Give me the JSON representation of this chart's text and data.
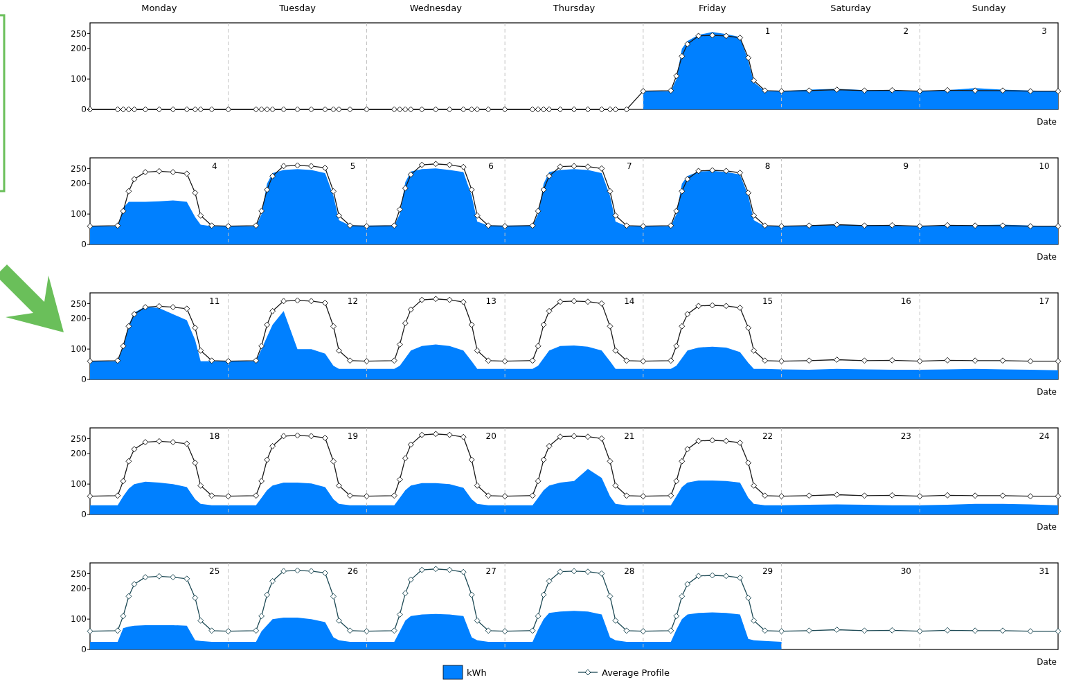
{
  "chart_data": [
    {
      "type": "area",
      "xlabel": "Date",
      "xlim": [
        -3.9,
        3.1
      ],
      "ylim": [
        0,
        285
      ],
      "yticks": [
        0,
        100,
        200,
        250
      ],
      "annotations": [
        "Monday",
        "Tuesday",
        "Wednesday",
        "Thursday",
        "Friday",
        "Saturday",
        "Sunday"
      ],
      "xticks": [
        1,
        2,
        3
      ],
      "x": [
        -3.9,
        -3.7,
        -3.66,
        -3.62,
        -3.58,
        -3.5,
        -3.4,
        -3.3,
        -3.2,
        -3.14,
        -3.1,
        -3.02,
        -2.9,
        -2.7,
        -2.66,
        -2.62,
        -2.58,
        -2.5,
        -2.4,
        -2.3,
        -2.2,
        -2.14,
        -2.1,
        -2.02,
        -1.9,
        -1.7,
        -1.66,
        -1.62,
        -1.58,
        -1.5,
        -1.4,
        -1.3,
        -1.2,
        -1.14,
        -1.1,
        -1.02,
        -0.9,
        -0.7,
        -0.66,
        -0.62,
        -0.58,
        -0.5,
        -0.4,
        -0.3,
        -0.2,
        -0.14,
        -0.1,
        -0.02,
        0.1,
        0.3,
        0.34,
        0.38,
        0.42,
        0.5,
        0.6,
        0.7,
        0.8,
        0.86,
        0.9,
        0.98,
        1.1,
        1.3,
        1.5,
        1.7,
        1.9,
        2.1,
        2.3,
        2.5,
        2.7,
        2.9,
        3.1
      ],
      "ref_lines": [
        {
          "axis": "x",
          "value": -2.9,
          "line_style": "dashed",
          "color": "#c0c0c0"
        },
        {
          "axis": "x",
          "value": -1.9,
          "line_style": "dashed",
          "color": "#c0c0c0"
        },
        {
          "axis": "x",
          "value": -0.9,
          "line_style": "dashed",
          "color": "#c0c0c0"
        },
        {
          "axis": "x",
          "value": 0.1,
          "line_style": "dashed",
          "color": "#c0c0c0"
        },
        {
          "axis": "x",
          "value": 1.1,
          "line_style": "dashed",
          "color": "#c0c0c0"
        },
        {
          "axis": "x",
          "value": 2.1,
          "line_style": "dashed",
          "color": "#c0c0c0"
        }
      ],
      "series": [
        {
          "color": "#0080ff",
          "values": [
            null,
            null,
            null,
            null,
            null,
            null,
            null,
            null,
            null,
            null,
            null,
            null,
            null,
            null,
            null,
            null,
            null,
            null,
            null,
            null,
            null,
            null,
            null,
            null,
            null,
            null,
            null,
            null,
            null,
            null,
            null,
            null,
            null,
            null,
            null,
            null,
            null,
            null,
            null,
            null,
            null,
            null,
            null,
            null,
            null,
            null,
            null,
            null,
            60,
            60,
            100,
            200,
            225,
            245,
            255,
            248,
            238,
            160,
            90,
            60,
            60,
            65,
            68,
            63,
            62,
            60,
            63,
            70,
            65,
            62,
            60
          ]
        },
        {
          "type": "line",
          "color": "#1a1a1a",
          "marker": "diamond",
          "values": [
            0,
            0,
            0,
            0,
            0,
            0,
            0,
            0,
            0,
            0,
            0,
            0,
            0,
            0,
            0,
            0,
            0,
            0,
            0,
            0,
            0,
            0,
            0,
            0,
            0,
            0,
            0,
            0,
            0,
            0,
            0,
            0,
            0,
            0,
            0,
            0,
            0,
            0,
            0,
            0,
            0,
            0,
            0,
            0,
            0,
            0,
            0,
            0,
            60,
            62,
            110,
            175,
            215,
            242,
            244,
            242,
            236,
            170,
            95,
            62,
            60,
            62,
            65,
            62,
            63,
            60,
            63,
            62,
            62,
            60,
            60
          ]
        }
      ]
    },
    {
      "type": "area",
      "xlabel": "Date",
      "xlim": [
        3.1,
        10.1
      ],
      "ylim": [
        0,
        285
      ],
      "yticks": [
        0,
        100,
        200,
        250
      ],
      "xticks": [
        4,
        5,
        6,
        7,
        8,
        9,
        10
      ],
      "x": [
        3.1,
        3.3,
        3.34,
        3.38,
        3.42,
        3.5,
        3.6,
        3.7,
        3.8,
        3.86,
        3.9,
        3.98,
        4.1,
        4.3,
        4.34,
        4.38,
        4.42,
        4.5,
        4.6,
        4.7,
        4.8,
        4.86,
        4.9,
        4.98,
        5.1,
        5.3,
        5.34,
        5.38,
        5.42,
        5.5,
        5.6,
        5.7,
        5.8,
        5.86,
        5.9,
        5.98,
        6.1,
        6.3,
        6.34,
        6.38,
        6.42,
        6.5,
        6.6,
        6.7,
        6.8,
        6.86,
        6.9,
        6.98,
        7.1,
        7.3,
        7.34,
        7.38,
        7.42,
        7.5,
        7.6,
        7.7,
        7.8,
        7.86,
        7.9,
        7.98,
        8.1,
        8.3,
        8.5,
        8.7,
        8.9,
        9.1,
        9.3,
        9.5,
        9.7,
        9.9,
        10.1
      ],
      "ref_lines": [
        {
          "axis": "x",
          "value": 4.1,
          "line_style": "dashed",
          "color": "#c0c0c0"
        },
        {
          "axis": "x",
          "value": 5.1,
          "line_style": "dashed",
          "color": "#c0c0c0"
        },
        {
          "axis": "x",
          "value": 6.1,
          "line_style": "dashed",
          "color": "#c0c0c0"
        },
        {
          "axis": "x",
          "value": 7.1,
          "line_style": "dashed",
          "color": "#c0c0c0"
        },
        {
          "axis": "x",
          "value": 8.1,
          "line_style": "dashed",
          "color": "#c0c0c0"
        },
        {
          "axis": "x",
          "value": 9.1,
          "line_style": "dashed",
          "color": "#c0c0c0"
        }
      ],
      "series": [
        {
          "color": "#0080ff",
          "values": [
            60,
            60,
            120,
            140,
            140,
            140,
            142,
            145,
            140,
            90,
            65,
            60,
            60,
            60,
            100,
            200,
            235,
            245,
            248,
            245,
            235,
            160,
            80,
            62,
            62,
            62,
            100,
            205,
            240,
            248,
            250,
            245,
            238,
            160,
            75,
            62,
            62,
            62,
            100,
            200,
            238,
            245,
            248,
            245,
            235,
            160,
            75,
            60,
            60,
            60,
            100,
            200,
            225,
            240,
            242,
            238,
            230,
            160,
            80,
            60,
            60,
            62,
            65,
            64,
            62,
            60,
            62,
            63,
            65,
            62,
            60
          ]
        },
        {
          "type": "line",
          "color": "#1a1a1a",
          "marker": "diamond",
          "values": [
            60,
            62,
            110,
            175,
            215,
            238,
            241,
            238,
            233,
            170,
            95,
            62,
            60,
            62,
            110,
            180,
            225,
            258,
            260,
            258,
            252,
            175,
            95,
            62,
            60,
            62,
            115,
            185,
            230,
            262,
            265,
            262,
            255,
            180,
            95,
            62,
            60,
            62,
            110,
            180,
            225,
            256,
            258,
            256,
            250,
            175,
            95,
            62,
            60,
            62,
            110,
            175,
            215,
            242,
            244,
            242,
            236,
            170,
            95,
            62,
            60,
            62,
            65,
            62,
            63,
            60,
            63,
            62,
            62,
            60,
            60
          ]
        }
      ]
    },
    {
      "type": "area",
      "xlabel": "Date",
      "xlim": [
        10.1,
        17.1
      ],
      "ylim": [
        0,
        285
      ],
      "yticks": [
        0,
        100,
        200,
        250
      ],
      "xticks": [
        11,
        12,
        13,
        14,
        15,
        16,
        17
      ],
      "x": [
        10.1,
        10.3,
        10.34,
        10.38,
        10.42,
        10.5,
        10.6,
        10.7,
        10.8,
        10.86,
        10.9,
        10.98,
        11.1,
        11.3,
        11.34,
        11.38,
        11.42,
        11.5,
        11.6,
        11.7,
        11.8,
        11.86,
        11.9,
        11.98,
        12.1,
        12.3,
        12.34,
        12.38,
        12.42,
        12.5,
        12.6,
        12.7,
        12.8,
        12.86,
        12.9,
        12.98,
        13.1,
        13.3,
        13.34,
        13.38,
        13.42,
        13.5,
        13.6,
        13.7,
        13.8,
        13.86,
        13.9,
        13.98,
        14.1,
        14.3,
        14.34,
        14.38,
        14.42,
        14.5,
        14.6,
        14.7,
        14.8,
        14.86,
        14.9,
        14.98,
        15.1,
        15.3,
        15.5,
        15.7,
        15.9,
        16.1,
        16.3,
        16.5,
        16.7,
        16.9,
        17.1
      ],
      "ref_lines": [
        {
          "axis": "x",
          "value": 11.1,
          "line_style": "dashed",
          "color": "#c0c0c0"
        },
        {
          "axis": "x",
          "value": 12.1,
          "line_style": "dashed",
          "color": "#c0c0c0"
        },
        {
          "axis": "x",
          "value": 13.1,
          "line_style": "dashed",
          "color": "#c0c0c0"
        },
        {
          "axis": "x",
          "value": 14.1,
          "line_style": "dashed",
          "color": "#c0c0c0"
        },
        {
          "axis": "x",
          "value": 15.1,
          "line_style": "dashed",
          "color": "#c0c0c0"
        },
        {
          "axis": "x",
          "value": 16.1,
          "line_style": "dashed",
          "color": "#c0c0c0"
        }
      ],
      "series": [
        {
          "color": "#0080ff",
          "values": [
            60,
            60,
            110,
            180,
            220,
            240,
            235,
            215,
            195,
            130,
            60,
            60,
            60,
            60,
            100,
            140,
            180,
            225,
            100,
            100,
            85,
            45,
            35,
            35,
            35,
            35,
            45,
            70,
            95,
            110,
            115,
            110,
            95,
            60,
            35,
            35,
            35,
            35,
            45,
            70,
            95,
            110,
            112,
            108,
            95,
            60,
            35,
            35,
            35,
            35,
            45,
            70,
            95,
            105,
            108,
            105,
            90,
            55,
            35,
            35,
            33,
            32,
            35,
            33,
            32,
            32,
            33,
            35,
            33,
            32,
            30
          ]
        },
        {
          "type": "line",
          "color": "#1a1a1a",
          "marker": "diamond",
          "values": [
            60,
            62,
            110,
            175,
            215,
            238,
            241,
            238,
            233,
            170,
            95,
            62,
            60,
            62,
            110,
            180,
            225,
            258,
            260,
            258,
            252,
            175,
            95,
            62,
            60,
            62,
            115,
            185,
            230,
            262,
            265,
            262,
            255,
            180,
            95,
            62,
            60,
            62,
            110,
            180,
            225,
            256,
            258,
            256,
            250,
            175,
            95,
            62,
            60,
            62,
            110,
            175,
            215,
            242,
            244,
            242,
            236,
            170,
            95,
            62,
            60,
            62,
            65,
            62,
            63,
            60,
            63,
            62,
            62,
            60,
            60
          ]
        }
      ]
    },
    {
      "type": "area",
      "xlabel": "Date",
      "xlim": [
        17.1,
        24.1
      ],
      "ylim": [
        0,
        285
      ],
      "yticks": [
        0,
        100,
        200,
        250
      ],
      "xticks": [
        18,
        19,
        20,
        21,
        22,
        23,
        24
      ],
      "x": [
        17.1,
        17.3,
        17.34,
        17.38,
        17.42,
        17.5,
        17.6,
        17.7,
        17.8,
        17.86,
        17.9,
        17.98,
        18.1,
        18.3,
        18.34,
        18.38,
        18.42,
        18.5,
        18.6,
        18.7,
        18.8,
        18.86,
        18.9,
        18.98,
        19.1,
        19.3,
        19.34,
        19.38,
        19.42,
        19.5,
        19.6,
        19.7,
        19.8,
        19.86,
        19.9,
        19.98,
        20.1,
        20.3,
        20.34,
        20.38,
        20.42,
        20.5,
        20.6,
        20.7,
        20.8,
        20.86,
        20.9,
        20.98,
        21.1,
        21.3,
        21.34,
        21.38,
        21.42,
        21.5,
        21.6,
        21.7,
        21.8,
        21.86,
        21.9,
        21.98,
        22.1,
        22.3,
        22.5,
        22.7,
        22.9,
        23.1,
        23.3,
        23.5,
        23.7,
        23.9,
        24.1
      ],
      "ref_lines": [
        {
          "axis": "x",
          "value": 18.1,
          "line_style": "dashed",
          "color": "#c0c0c0"
        },
        {
          "axis": "x",
          "value": 19.1,
          "line_style": "dashed",
          "color": "#c0c0c0"
        },
        {
          "axis": "x",
          "value": 20.1,
          "line_style": "dashed",
          "color": "#c0c0c0"
        },
        {
          "axis": "x",
          "value": 21.1,
          "line_style": "dashed",
          "color": "#c0c0c0"
        },
        {
          "axis": "x",
          "value": 22.1,
          "line_style": "dashed",
          "color": "#c0c0c0"
        },
        {
          "axis": "x",
          "value": 23.1,
          "line_style": "dashed",
          "color": "#c0c0c0"
        }
      ],
      "series": [
        {
          "color": "#0080ff",
          "values": [
            30,
            30,
            60,
            85,
            100,
            108,
            105,
            100,
            90,
            50,
            35,
            30,
            30,
            30,
            55,
            80,
            95,
            105,
            105,
            102,
            90,
            50,
            35,
            30,
            30,
            30,
            55,
            80,
            95,
            103,
            103,
            100,
            88,
            50,
            35,
            30,
            30,
            30,
            55,
            80,
            95,
            105,
            110,
            150,
            120,
            60,
            35,
            30,
            30,
            30,
            60,
            90,
            105,
            112,
            112,
            110,
            105,
            55,
            35,
            30,
            30,
            32,
            33,
            32,
            30,
            30,
            32,
            35,
            35,
            33,
            30
          ]
        },
        {
          "type": "line",
          "color": "#1a1a1a",
          "marker": "diamond",
          "values": [
            60,
            62,
            110,
            175,
            215,
            238,
            241,
            238,
            233,
            170,
            95,
            62,
            60,
            62,
            110,
            180,
            225,
            258,
            260,
            258,
            252,
            175,
            95,
            62,
            60,
            62,
            115,
            185,
            230,
            262,
            265,
            262,
            255,
            180,
            95,
            62,
            60,
            62,
            110,
            180,
            225,
            256,
            258,
            256,
            250,
            175,
            95,
            62,
            60,
            62,
            110,
            175,
            215,
            242,
            244,
            242,
            236,
            170,
            95,
            62,
            60,
            62,
            65,
            62,
            63,
            60,
            63,
            62,
            62,
            60,
            60
          ]
        }
      ]
    },
    {
      "type": "area",
      "xlabel": "Date",
      "xlim": [
        24.1,
        31.1
      ],
      "ylim": [
        0,
        285
      ],
      "yticks": [
        0,
        100,
        200,
        250
      ],
      "legend": "bottom",
      "xticks": [
        25,
        26,
        27,
        28,
        29,
        30,
        31
      ],
      "x": [
        24.1,
        24.3,
        24.34,
        24.38,
        24.42,
        24.5,
        24.6,
        24.7,
        24.8,
        24.86,
        24.9,
        24.98,
        25.1,
        25.3,
        25.34,
        25.38,
        25.42,
        25.5,
        25.6,
        25.7,
        25.8,
        25.86,
        25.9,
        25.98,
        26.1,
        26.3,
        26.34,
        26.38,
        26.42,
        26.5,
        26.6,
        26.7,
        26.8,
        26.86,
        26.9,
        26.98,
        27.1,
        27.3,
        27.34,
        27.38,
        27.42,
        27.5,
        27.6,
        27.7,
        27.8,
        27.86,
        27.9,
        27.98,
        28.1,
        28.3,
        28.34,
        28.38,
        28.42,
        28.5,
        28.6,
        28.7,
        28.8,
        28.86,
        28.9,
        28.98,
        29.1,
        29.3,
        29.5,
        29.7,
        29.9,
        30.1,
        30.3,
        30.5,
        30.7,
        30.9,
        31.1
      ],
      "ref_lines": [
        {
          "axis": "x",
          "value": 25.1,
          "line_style": "dashed",
          "color": "#c0c0c0"
        },
        {
          "axis": "x",
          "value": 26.1,
          "line_style": "dashed",
          "color": "#c0c0c0"
        },
        {
          "axis": "x",
          "value": 27.1,
          "line_style": "dashed",
          "color": "#c0c0c0"
        },
        {
          "axis": "x",
          "value": 28.1,
          "line_style": "dashed",
          "color": "#c0c0c0"
        },
        {
          "axis": "x",
          "value": 29.1,
          "line_style": "dashed",
          "color": "#c0c0c0"
        },
        {
          "axis": "x",
          "value": 30.1,
          "line_style": "dashed",
          "color": "#c0c0c0"
        }
      ],
      "series": [
        {
          "name": "kWh",
          "color": "#0080ff",
          "values": [
            25,
            25,
            70,
            75,
            78,
            80,
            80,
            80,
            78,
            30,
            28,
            25,
            25,
            25,
            60,
            80,
            100,
            105,
            105,
            100,
            90,
            40,
            30,
            25,
            25,
            25,
            60,
            95,
            110,
            115,
            117,
            115,
            110,
            40,
            30,
            25,
            25,
            25,
            65,
            100,
            120,
            125,
            127,
            125,
            115,
            40,
            30,
            25,
            25,
            25,
            65,
            100,
            115,
            120,
            122,
            120,
            115,
            35,
            30,
            28,
            25,
            null,
            null,
            null,
            null,
            null,
            null,
            null,
            null,
            null,
            null
          ]
        },
        {
          "type": "line",
          "name": "Average Profile",
          "color": "#1e4a55",
          "marker": "diamond",
          "values": [
            60,
            62,
            110,
            175,
            215,
            238,
            241,
            238,
            233,
            170,
            95,
            62,
            60,
            62,
            110,
            180,
            225,
            258,
            260,
            258,
            252,
            175,
            95,
            62,
            60,
            62,
            115,
            185,
            230,
            262,
            265,
            262,
            255,
            180,
            95,
            62,
            60,
            62,
            110,
            180,
            225,
            256,
            258,
            256,
            250,
            175,
            95,
            62,
            60,
            62,
            110,
            175,
            215,
            242,
            244,
            242,
            236,
            170,
            95,
            62,
            60,
            62,
            65,
            62,
            63,
            60,
            63,
            62,
            62,
            60,
            60
          ]
        }
      ]
    }
  ]
}
